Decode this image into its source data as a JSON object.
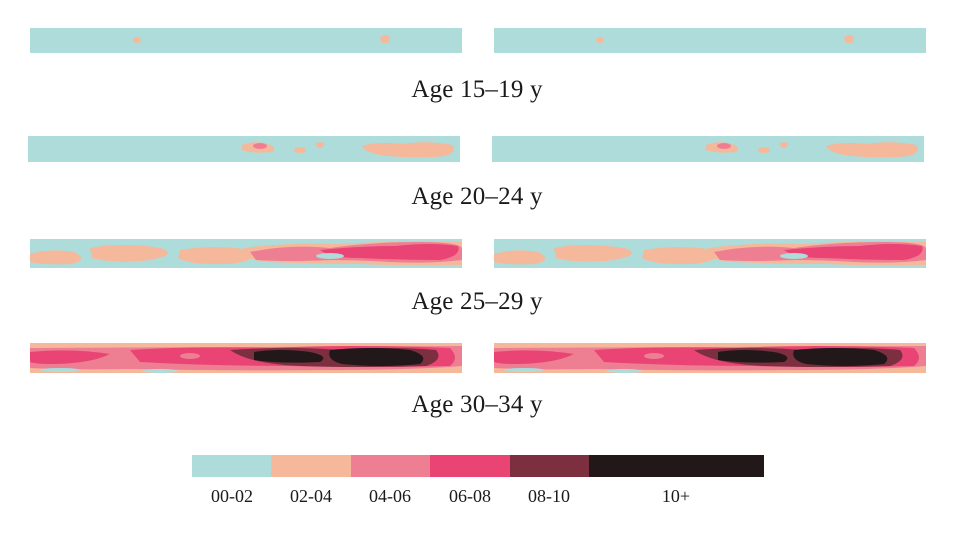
{
  "colors": {
    "c0": "#addcda",
    "c1": "#f6b89a",
    "c2": "#ee7f93",
    "c3": "#e94474",
    "c4": "#7b2f3f",
    "c5": "#221719"
  },
  "rows": [
    {
      "label": "Age 15–19 y",
      "level": 0
    },
    {
      "label": "Age 20–24 y",
      "level": 1
    },
    {
      "label": "Age 25–29 y",
      "level": 2
    },
    {
      "label": "Age 30–34 y",
      "level": 3
    }
  ],
  "legend": {
    "items": [
      {
        "label": "00-02",
        "color": "#addcda"
      },
      {
        "label": "02-04",
        "color": "#f6b89a"
      },
      {
        "label": "04-06",
        "color": "#ee7f93"
      },
      {
        "label": "06-08",
        "color": "#e94474"
      },
      {
        "label": "08-10",
        "color": "#7b2f3f"
      },
      {
        "label": "10+",
        "color": "#221719"
      }
    ]
  }
}
